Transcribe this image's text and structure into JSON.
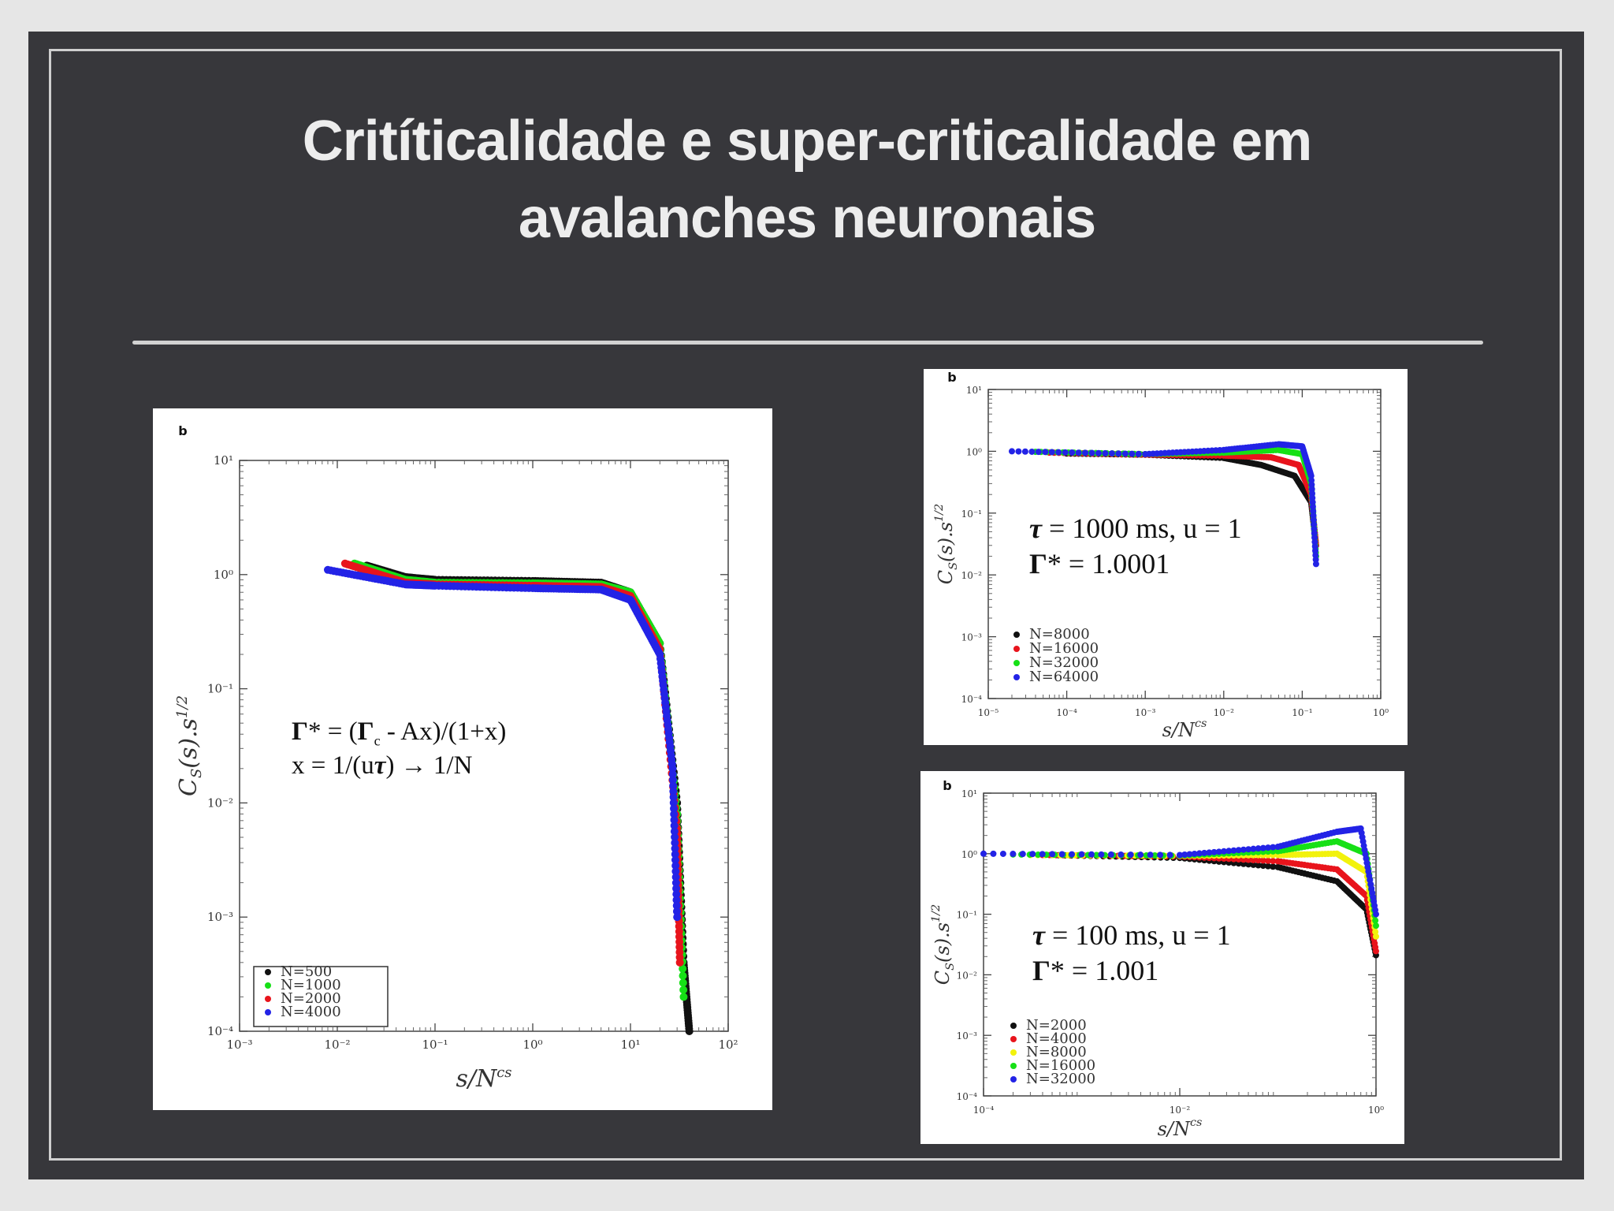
{
  "slide": {
    "title_line1": "Critíticalidade e super-criticalidade em",
    "title_line2": "avalanches neuronais"
  },
  "colors": {
    "black": "#111111",
    "red": "#e8141c",
    "green": "#16e016",
    "blue": "#2323e6",
    "yellow": "#f2f20c"
  },
  "chart_data": [
    {
      "type": "scatter",
      "panel_label": "b",
      "xscale": "log",
      "yscale": "log",
      "xlim": [
        0.001,
        100
      ],
      "ylim": [
        0.0001,
        10
      ],
      "xlabel": "s/N^cs",
      "ylabel": "C_S(s).s^1/2",
      "xticks": [
        "10⁻³",
        "10⁻²",
        "10⁻¹",
        "10⁰",
        "10¹",
        "10²"
      ],
      "yticks": [
        "10⁻⁴",
        "10⁻³",
        "10⁻²",
        "10⁻¹",
        "10⁰",
        "10¹"
      ],
      "legend_position": "bottom-left",
      "annotation": {
        "line1_a": "Γ",
        "line1_b": "* = (",
        "line1_c": "Γ",
        "line1_sub": "c",
        "line1_d": " - Ax)/(1+x)",
        "line2_a": "x = 1/(u",
        "line2_b": "τ",
        "line2_c": ") → 1/N"
      },
      "series": [
        {
          "name": "N=500",
          "color": "black",
          "x": [
            0.02,
            0.05,
            0.1,
            1,
            5,
            10,
            20,
            30,
            35,
            40
          ],
          "y": [
            1.2,
            0.95,
            0.9,
            0.88,
            0.85,
            0.7,
            0.25,
            0.01,
            0.0004,
            0.0001
          ]
        },
        {
          "name": "N=1000",
          "color": "green",
          "x": [
            0.015,
            0.05,
            0.1,
            1,
            5,
            10,
            20,
            30,
            35
          ],
          "y": [
            1.25,
            0.9,
            0.85,
            0.84,
            0.82,
            0.7,
            0.25,
            0.008,
            0.0002
          ]
        },
        {
          "name": "N=2000",
          "color": "red",
          "x": [
            0.012,
            0.05,
            0.1,
            1,
            5,
            10,
            20,
            30,
            32
          ],
          "y": [
            1.25,
            0.85,
            0.82,
            0.8,
            0.78,
            0.65,
            0.22,
            0.006,
            0.0004
          ]
        },
        {
          "name": "N=4000",
          "color": "blue",
          "x": [
            0.008,
            0.05,
            0.1,
            1,
            5,
            10,
            20,
            27,
            30
          ],
          "y": [
            1.1,
            0.82,
            0.8,
            0.76,
            0.74,
            0.6,
            0.2,
            0.02,
            0.001
          ]
        }
      ]
    },
    {
      "type": "scatter",
      "panel_label": "b",
      "xscale": "log",
      "yscale": "log",
      "xlim": [
        1e-05,
        1
      ],
      "ylim": [
        0.0001,
        10
      ],
      "xlabel": "s/N^cs",
      "ylabel": "C_S(s).s^1/2",
      "xticks": [
        "10⁻⁵",
        "10⁻⁴",
        "10⁻³",
        "10⁻²",
        "10⁻¹",
        "10⁰"
      ],
      "yticks": [
        "10⁻⁴",
        "10⁻³",
        "10⁻²",
        "10⁻¹",
        "10⁰",
        "10¹"
      ],
      "legend_position": "bottom-left",
      "annotation": {
        "line1_a": "τ",
        "line1_b": " = 1000 ms, u = 1",
        "line2_a": "Γ",
        "line2_b": "* = 1.0001"
      },
      "series": [
        {
          "name": "N=8000",
          "color": "black",
          "x": [
            0.0001,
            0.001,
            0.01,
            0.03,
            0.08,
            0.13,
            0.15
          ],
          "y": [
            0.92,
            0.88,
            0.78,
            0.6,
            0.4,
            0.15,
            0.03
          ]
        },
        {
          "name": "N=16000",
          "color": "red",
          "x": [
            6e-05,
            0.001,
            0.01,
            0.04,
            0.09,
            0.13,
            0.15
          ],
          "y": [
            0.95,
            0.88,
            0.85,
            0.8,
            0.6,
            0.2,
            0.03
          ]
        },
        {
          "name": "N=32000",
          "color": "green",
          "x": [
            4e-05,
            0.001,
            0.01,
            0.05,
            0.1,
            0.13,
            0.15
          ],
          "y": [
            0.98,
            0.9,
            0.95,
            1.05,
            0.9,
            0.3,
            0.02
          ]
        },
        {
          "name": "N=64000",
          "color": "blue",
          "x": [
            2e-05,
            0.001,
            0.01,
            0.05,
            0.1,
            0.13,
            0.15
          ],
          "y": [
            1.0,
            0.9,
            1.05,
            1.3,
            1.2,
            0.4,
            0.015
          ]
        }
      ]
    },
    {
      "type": "scatter",
      "panel_label": "b",
      "xscale": "log",
      "yscale": "log",
      "xlim": [
        0.0001,
        1
      ],
      "ylim": [
        0.0001,
        10
      ],
      "xlabel": "s/N^cs",
      "ylabel": "C_S(s).s^1/2",
      "xticks": [
        "10⁻⁴",
        "10⁻²",
        "10⁰"
      ],
      "yticks": [
        "10⁻⁴",
        "10⁻³",
        "10⁻²",
        "10⁻¹",
        "10⁰",
        "10¹"
      ],
      "legend_position": "bottom-left",
      "annotation": {
        "line1_a": "τ",
        "line1_b": " = 100 ms, u = 1",
        "line2_a": "Γ",
        "line2_b": "* = 1.001"
      },
      "series": [
        {
          "name": "N=2000",
          "color": "black",
          "x": [
            0.0005,
            0.01,
            0.1,
            0.4,
            0.8,
            1.1,
            1.2
          ],
          "y": [
            0.95,
            0.85,
            0.6,
            0.35,
            0.12,
            0.01,
            0.0015
          ]
        },
        {
          "name": "N=4000",
          "color": "red",
          "x": [
            0.0004,
            0.01,
            0.1,
            0.4,
            0.8,
            1.1,
            1.2
          ],
          "y": [
            0.95,
            0.9,
            0.75,
            0.55,
            0.2,
            0.01,
            0.002
          ]
        },
        {
          "name": "N=8000",
          "color": "yellow",
          "x": [
            0.0003,
            0.01,
            0.1,
            0.4,
            0.8,
            1.1,
            1.2
          ],
          "y": [
            0.95,
            0.92,
            0.95,
            1.0,
            0.5,
            0.015,
            0.003
          ]
        },
        {
          "name": "N=16000",
          "color": "green",
          "x": [
            0.0002,
            0.01,
            0.1,
            0.4,
            0.8,
            1.1,
            1.2
          ],
          "y": [
            0.97,
            0.93,
            1.1,
            1.6,
            1.0,
            0.02,
            0.004
          ]
        },
        {
          "name": "N=32000",
          "color": "blue",
          "x": [
            0.0001,
            0.01,
            0.1,
            0.4,
            0.7,
            1.0,
            1.2
          ],
          "y": [
            1.0,
            0.95,
            1.3,
            2.3,
            2.6,
            0.1,
            0.005
          ]
        }
      ]
    }
  ]
}
